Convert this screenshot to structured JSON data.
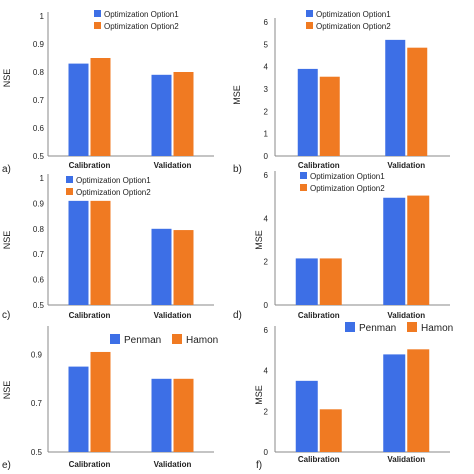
{
  "chart_data": [
    {
      "id": "a",
      "panel_label": "a)",
      "type": "bar",
      "ylabel": "NSE",
      "ylim": [
        0.5,
        1.0
      ],
      "yticks": [
        "0.5",
        "0.6",
        "0.7",
        "0.8",
        "0.9",
        "1"
      ],
      "categories": [
        "Calibration",
        "Validation"
      ],
      "series": [
        {
          "name": "Optimization Option1",
          "values": [
            0.83,
            0.79
          ]
        },
        {
          "name": "Optimization Option2",
          "values": [
            0.85,
            0.8
          ]
        }
      ],
      "legend": "top"
    },
    {
      "id": "b",
      "panel_label": "b)",
      "type": "bar",
      "ylabel": "MSE",
      "ylim": [
        0,
        6
      ],
      "yticks": [
        "0",
        "1",
        "2",
        "3",
        "4",
        "5",
        "6"
      ],
      "categories": [
        "Calibration",
        "Validation"
      ],
      "series": [
        {
          "name": "Optimization Option1",
          "values": [
            3.9,
            5.2
          ]
        },
        {
          "name": "Optimization Option2",
          "values": [
            3.55,
            4.85
          ]
        }
      ],
      "legend": "top"
    },
    {
      "id": "c",
      "panel_label": "c)",
      "type": "bar",
      "ylabel": "NSE",
      "ylim": [
        0.5,
        1.0
      ],
      "yticks": [
        "0.5",
        "0.6",
        "0.7",
        "0.8",
        "0.9",
        "1"
      ],
      "categories": [
        "Calibration",
        "Validation"
      ],
      "series": [
        {
          "name": "Optimization Option1",
          "values": [
            0.91,
            0.8
          ]
        },
        {
          "name": "Optimization Option2",
          "values": [
            0.91,
            0.795
          ]
        }
      ],
      "legend": "top"
    },
    {
      "id": "d",
      "panel_label": "d)",
      "type": "bar",
      "ylabel": "MSE",
      "ylim": [
        0,
        6
      ],
      "yticks": [
        "0",
        "2",
        "4",
        "6"
      ],
      "categories": [
        "Calibration",
        "Validation"
      ],
      "series": [
        {
          "name": "Optimization Option1",
          "values": [
            2.15,
            4.95
          ]
        },
        {
          "name": "Optimization Option2",
          "values": [
            2.15,
            5.05
          ]
        }
      ],
      "legend": "top"
    },
    {
      "id": "e",
      "panel_label": "e)",
      "type": "bar",
      "ylabel": "NSE",
      "ylim": [
        0.5,
        1.0
      ],
      "yticks": [
        "0.5",
        "0.7",
        "0.9"
      ],
      "categories": [
        "Calibration",
        "Validation"
      ],
      "series": [
        {
          "name": "Penman",
          "values": [
            0.85,
            0.8
          ]
        },
        {
          "name": "Hamon",
          "values": [
            0.91,
            0.8
          ]
        }
      ],
      "legend": "top"
    },
    {
      "id": "f",
      "panel_label": "f)",
      "type": "bar",
      "ylabel": "MSE",
      "ylim": [
        0,
        6
      ],
      "yticks": [
        "0",
        "2",
        "4",
        "6"
      ],
      "categories": [
        "Calibration",
        "Validation"
      ],
      "series": [
        {
          "name": "Penman",
          "values": [
            3.5,
            4.8
          ]
        },
        {
          "name": "Hamon",
          "values": [
            2.1,
            5.05
          ]
        }
      ],
      "legend": "top"
    }
  ],
  "colors": {
    "series1": "#3d6fe6",
    "series2": "#f07a22",
    "axis": "#888888",
    "text": "#222222"
  }
}
